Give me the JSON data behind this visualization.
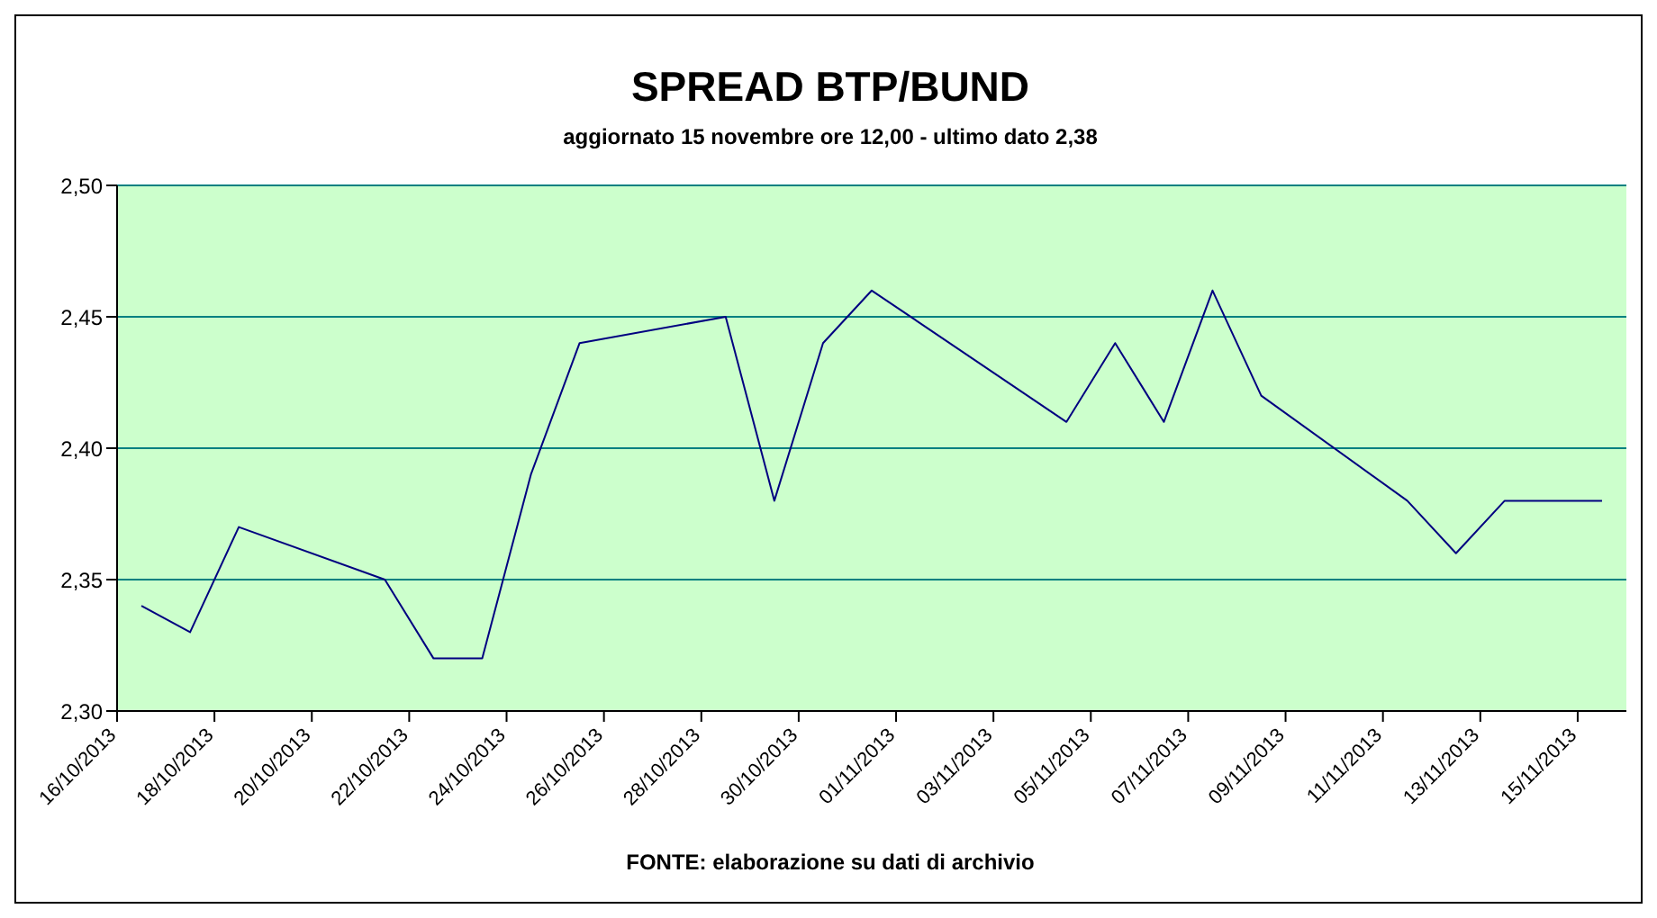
{
  "chart_data": {
    "type": "line",
    "title": "SPREAD BTP/BUND",
    "subtitle": "aggiornato 15 novembre ore 12,00 - ultimo dato 2,38",
    "annotations": [
      "FONTE: elaborazione su dati di archivio"
    ],
    "x": [
      "2013-10-16T12:00",
      "2013-10-17T12:00",
      "2013-10-18T12:00",
      "2013-10-21T12:00",
      "2013-10-22T12:00",
      "2013-10-23T12:00",
      "2013-10-24T12:00",
      "2013-10-25T12:00",
      "2013-10-28T12:00",
      "2013-10-29T12:00",
      "2013-10-30T12:00",
      "2013-10-31T12:00",
      "2013-11-04T12:00",
      "2013-11-05T12:00",
      "2013-11-06T12:00",
      "2013-11-07T12:00",
      "2013-11-08T12:00",
      "2013-11-11T12:00",
      "2013-11-12T12:00",
      "2013-11-13T12:00",
      "2013-11-14T12:00",
      "2013-11-15T12:00"
    ],
    "series": [
      {
        "color": "#000080",
        "values": [
          2.34,
          2.33,
          2.37,
          2.35,
          2.32,
          2.32,
          2.39,
          2.44,
          2.45,
          2.38,
          2.44,
          2.46,
          2.41,
          2.44,
          2.41,
          2.46,
          2.42,
          2.38,
          2.36,
          2.38,
          2.38,
          2.38
        ]
      }
    ],
    "xlim": [
      "2013-10-16",
      "2013-11-16"
    ],
    "xticks": [
      {
        "value": "2013-10-16",
        "label": "16/10/2013"
      },
      {
        "value": "2013-10-18",
        "label": "18/10/2013"
      },
      {
        "value": "2013-10-20",
        "label": "20/10/2013"
      },
      {
        "value": "2013-10-22",
        "label": "22/10/2013"
      },
      {
        "value": "2013-10-24",
        "label": "24/10/2013"
      },
      {
        "value": "2013-10-26",
        "label": "26/10/2013"
      },
      {
        "value": "2013-10-28",
        "label": "28/10/2013"
      },
      {
        "value": "2013-10-30",
        "label": "30/10/2013"
      },
      {
        "value": "2013-11-01",
        "label": "01/11/2013"
      },
      {
        "value": "2013-11-03",
        "label": "03/11/2013"
      },
      {
        "value": "2013-11-05",
        "label": "05/11/2013"
      },
      {
        "value": "2013-11-07",
        "label": "07/11/2013"
      },
      {
        "value": "2013-11-09",
        "label": "09/11/2013"
      },
      {
        "value": "2013-11-11",
        "label": "11/11/2013"
      },
      {
        "value": "2013-11-13",
        "label": "13/11/2013"
      },
      {
        "value": "2013-11-15",
        "label": "15/11/2013"
      }
    ],
    "ylim": [
      2.3,
      2.5
    ],
    "yticks": [
      {
        "value": 2.3,
        "label": "2,30"
      },
      {
        "value": 2.35,
        "label": "2,35"
      },
      {
        "value": 2.4,
        "label": "2,40"
      },
      {
        "value": 2.45,
        "label": "2,45"
      },
      {
        "value": 2.5,
        "label": "2,50"
      }
    ],
    "grid": "y",
    "legend": false,
    "marker": "none",
    "line_style": "solid"
  }
}
